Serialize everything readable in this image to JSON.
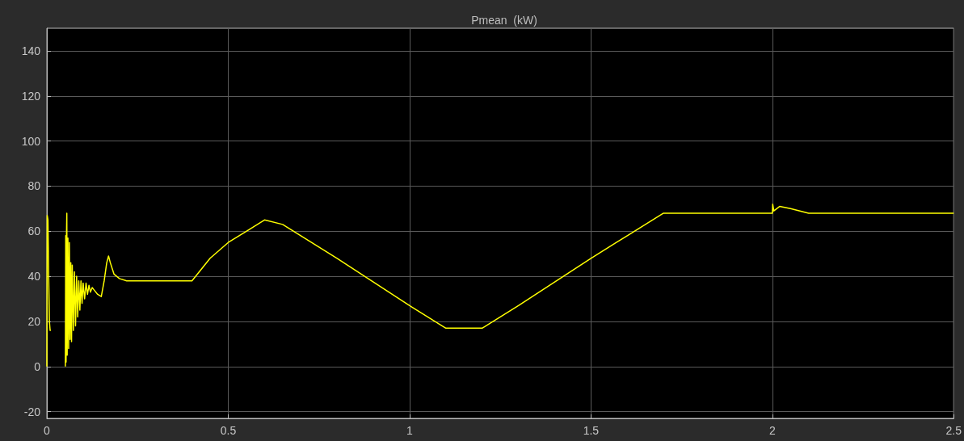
{
  "chart_data": {
    "type": "line",
    "title": "Pmean  (kW)",
    "x": [
      0,
      0.001,
      0.003,
      0.005,
      0.007,
      0.009,
      0.011,
      0.013,
      0.05,
      0.051,
      0.052,
      0.053,
      0.054,
      0.055,
      0.056,
      0.058,
      0.06,
      0.062,
      0.064,
      0.066,
      0.068,
      0.07,
      0.073,
      0.076,
      0.079,
      0.082,
      0.085,
      0.088,
      0.091,
      0.094,
      0.097,
      0.1,
      0.104,
      0.108,
      0.112,
      0.116,
      0.12,
      0.125,
      0.13,
      0.14,
      0.15,
      0.158,
      0.165,
      0.17,
      0.175,
      0.185,
      0.2,
      0.22,
      0.3,
      0.4,
      0.45,
      0.5,
      0.55,
      0.6,
      0.65,
      0.7,
      0.8,
      0.9,
      1.0,
      1.1,
      1.2,
      1.3,
      1.4,
      1.5,
      1.6,
      1.7,
      2.0,
      2.001,
      2.004,
      2.02,
      2.05,
      2.1,
      2.115,
      2.5
    ],
    "series": [
      {
        "color": "#ffff00",
        "values": [
          0,
          67,
          65,
          40,
          20,
          16,
          16,
          null,
          null,
          0,
          58,
          2,
          57,
          68,
          5,
          57,
          8,
          55,
          12,
          46,
          11,
          45,
          16,
          42,
          18,
          40,
          22,
          38,
          25,
          38,
          28,
          37,
          30,
          37,
          32,
          36,
          33,
          35,
          34,
          32,
          31,
          38,
          46,
          49,
          46,
          41,
          39,
          38,
          38,
          38,
          48,
          55,
          60,
          65,
          63,
          58,
          48,
          37.5,
          27,
          17,
          17,
          27,
          37.5,
          48,
          58,
          68,
          68,
          72,
          69,
          71,
          70,
          68,
          68,
          68
        ]
      }
    ],
    "xlim": [
      0,
      2.5
    ],
    "xticks": [
      0,
      0.5,
      1,
      1.5,
      2,
      2.5
    ],
    "ylim": [
      -23,
      150
    ],
    "yticks": [
      -20,
      0,
      20,
      40,
      60,
      80,
      100,
      120,
      140
    ],
    "grid": true,
    "marker": "none",
    "line_style": "solid"
  }
}
